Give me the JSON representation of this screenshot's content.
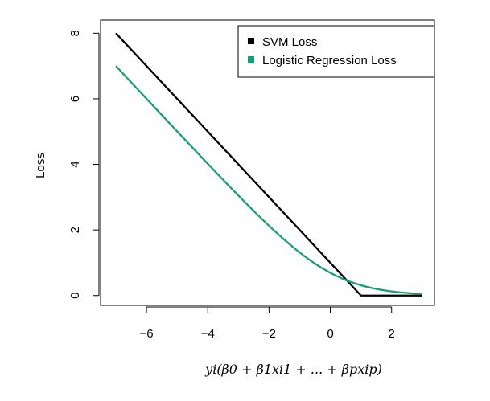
{
  "chart_data": {
    "type": "line",
    "title": "",
    "xlabel": "yi(β0 + β1xi1 + ... + βpxip)",
    "ylabel": "Loss",
    "xlim": [
      -7.5,
      3.4
    ],
    "ylim": [
      -0.3,
      8.4
    ],
    "x_ticks": [
      -6,
      -4,
      -2,
      0,
      2
    ],
    "x_tick_labels": [
      "−6",
      "−4",
      "−2",
      "0",
      "2"
    ],
    "y_ticks": [
      0,
      2,
      4,
      6,
      8
    ],
    "y_tick_labels": [
      "0",
      "2",
      "4",
      "6",
      "8"
    ],
    "grid": false,
    "legend_position": "top-right",
    "series": [
      {
        "name": "SVM Loss",
        "color": "#000000",
        "x": [
          -7,
          1,
          3
        ],
        "y": [
          8,
          0,
          0
        ]
      },
      {
        "name": "Logistic Regression Loss",
        "color": "#1a9e77",
        "x": [
          -7,
          -6,
          -5,
          -4,
          -3,
          -2,
          -1,
          0,
          0.5,
          1,
          1.5,
          2,
          2.5,
          3
        ],
        "y": [
          7.0,
          6.0,
          5.0,
          4.02,
          3.05,
          2.13,
          1.31,
          0.69,
          0.47,
          0.31,
          0.2,
          0.13,
          0.08,
          0.05
        ]
      }
    ]
  }
}
